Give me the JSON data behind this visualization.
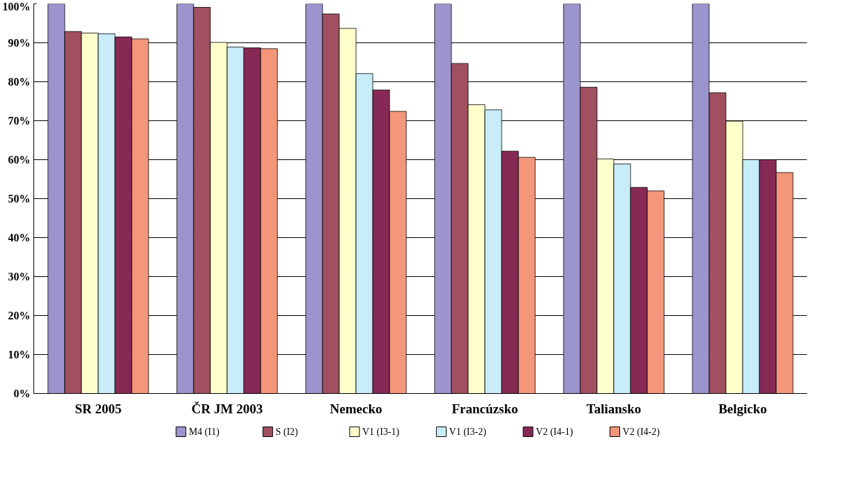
{
  "chart_data": {
    "type": "bar",
    "categories": [
      "SR 2005",
      "ČR JM 2003",
      "Nemecko",
      "Francúzsko",
      "Taliansko",
      "Belgicko"
    ],
    "series": [
      {
        "name": "M4   (I1)",
        "color": "#9c94cc",
        "values": [
          100,
          100,
          100,
          100,
          100,
          100
        ]
      },
      {
        "name": "S   (I2)",
        "color": "#a0505f",
        "values": [
          92.9,
          99.1,
          97.4,
          84.7,
          78.6,
          77.2
        ]
      },
      {
        "name": "V1 (I3-1)",
        "color": "#ffffcc",
        "values": [
          92.5,
          90.1,
          93.7,
          74.1,
          60.2,
          69.9
        ]
      },
      {
        "name": "V1 (I3-2)",
        "color": "#c8ecf8",
        "values": [
          92.3,
          88.9,
          82.1,
          72.8,
          58.9,
          60.0
        ]
      },
      {
        "name": "V2 (I4-1)",
        "color": "#862a55",
        "values": [
          91.5,
          88.7,
          77.9,
          62.2,
          52.9,
          60.0
        ]
      },
      {
        "name": "V2 (I4-2)",
        "color": "#f4967a",
        "values": [
          91.0,
          88.5,
          72.4,
          60.6,
          52.0,
          56.7
        ]
      }
    ],
    "ylim": [
      0,
      100
    ],
    "yticks": [
      {
        "value": 0,
        "label": "0%"
      },
      {
        "value": 10,
        "label": "10%"
      },
      {
        "value": 20,
        "label": "20%"
      },
      {
        "value": 30,
        "label": "30%"
      },
      {
        "value": 40,
        "label": "40%"
      },
      {
        "value": 50,
        "label": "50%"
      },
      {
        "value": 60,
        "label": "60%"
      },
      {
        "value": 70,
        "label": "70%"
      },
      {
        "value": 80,
        "label": "80%"
      },
      {
        "value": 90,
        "label": "90%"
      },
      {
        "value": 100,
        "label": "100%"
      }
    ],
    "grid": "y",
    "legend": "bottom"
  }
}
